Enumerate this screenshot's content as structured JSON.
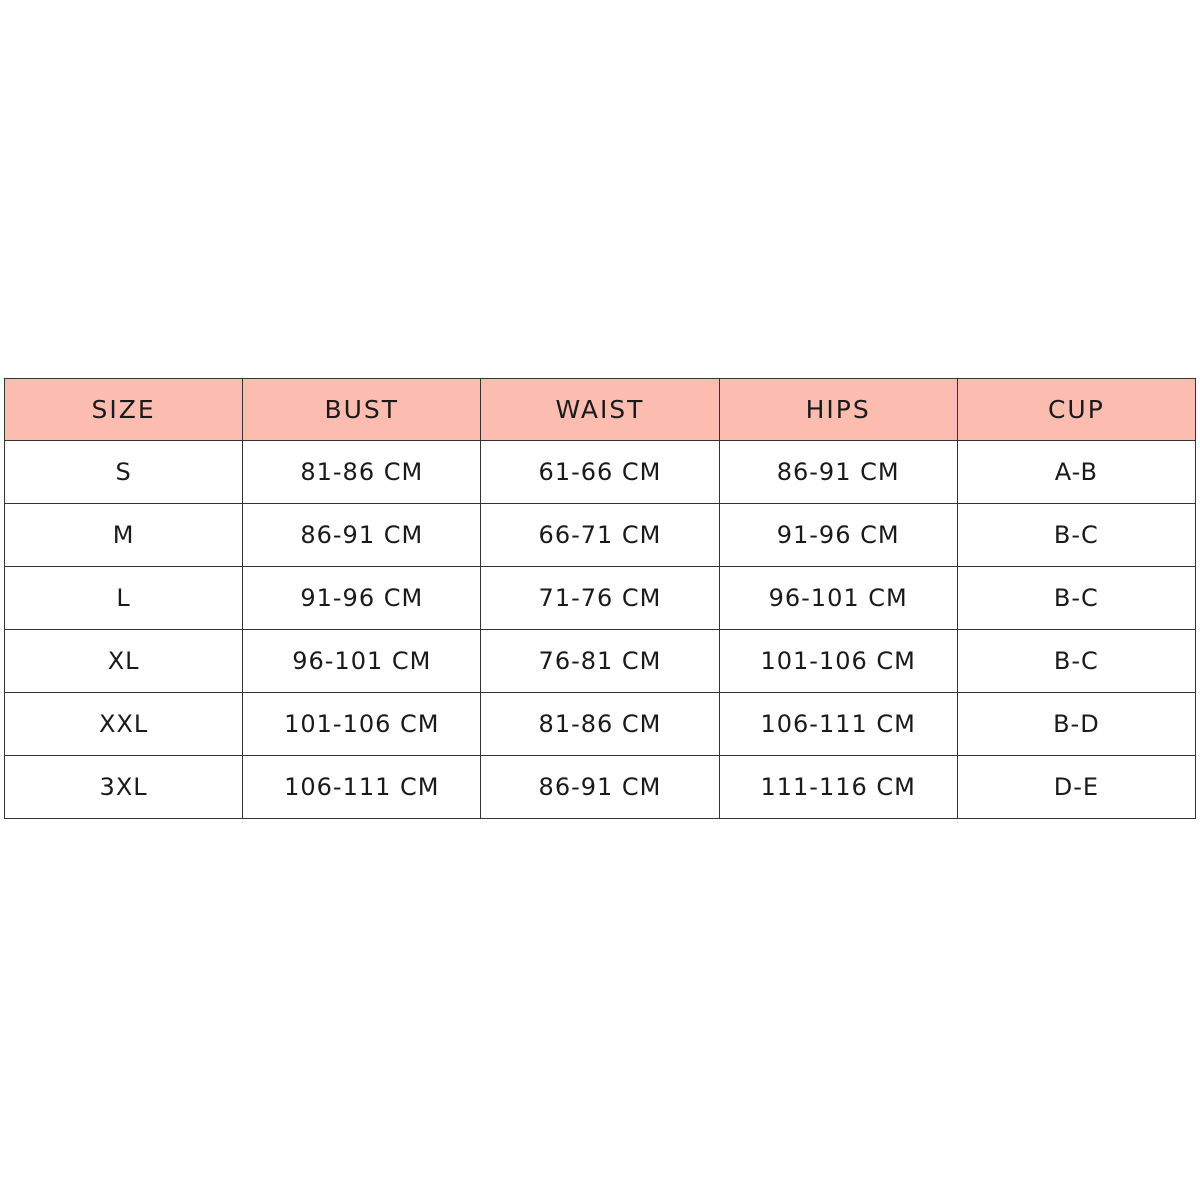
{
  "colors": {
    "header_bg": "#fdbcb0",
    "border": "#333333"
  },
  "headers": [
    "SIZE",
    "BUST",
    "WAIST",
    "HIPS",
    "CUP"
  ],
  "rows": [
    [
      "S",
      "81-86 CM",
      "61-66 CM",
      "86-91 CM",
      "A-B"
    ],
    [
      "M",
      "86-91 CM",
      "66-71 CM",
      "91-96 CM",
      "B-C"
    ],
    [
      "L",
      "91-96 CM",
      "71-76 CM",
      "96-101 CM",
      "B-C"
    ],
    [
      "XL",
      "96-101 CM",
      "76-81 CM",
      "101-106 CM",
      "B-C"
    ],
    [
      "XXL",
      "101-106 CM",
      "81-86 CM",
      "106-111 CM",
      "B-D"
    ],
    [
      "3XL",
      "106-111 CM",
      "86-91 CM",
      "111-116 CM",
      "D-E"
    ]
  ]
}
